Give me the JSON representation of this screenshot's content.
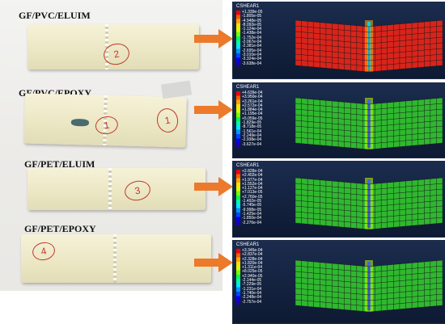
{
  "rows": [
    {
      "label": "GF/PVC/ELUIM",
      "mark": "2",
      "contour": "red",
      "legend_title": "CSHEAR1",
      "legend_values": [
        "+1.339e-05",
        "-1.805e-05",
        "-4.948e-05",
        "-8.092e-05",
        "-1.124e-04",
        "-1.438e-04",
        "-1.752e-04",
        "-2.067e-04",
        "-2.381e-04",
        "-2.695e-04",
        "-3.010e-04",
        "-3.324e-04",
        "-3.638e-04"
      ]
    },
    {
      "label": "GF/PVC/EPOXY",
      "mark": "1",
      "contour": "green",
      "legend_title": "CSHEAR1",
      "legend_values": [
        "+4.639e-04",
        "+3.950e-04",
        "+3.261e-04",
        "+2.572e-04",
        "+1.884e-04",
        "+1.195e-04",
        "+5.059e-05",
        "-1.829e-05",
        "-8.718e-05",
        "-1.561e-04",
        "-2.249e-04",
        "-2.938e-04",
        "-3.627e-04"
      ]
    },
    {
      "label": "GF/PET/ELUIM",
      "mark": "3",
      "contour": "green",
      "legend_title": "CSHEAR1",
      "legend_values": [
        "+2.828e-04",
        "+2.402e-04",
        "+1.977e-04",
        "+1.552e-04",
        "+1.127e-04",
        "+7.013e-05",
        "+2.760e-05",
        "-1.492e-05",
        "-5.745e-05",
        "-9.998e-05",
        "-1.425e-04",
        "-1.850e-04",
        "-2.276e-04"
      ]
    },
    {
      "label": "GF/PET/EPOXY",
      "mark": "4",
      "contour": "green",
      "legend_title": "CSHEAR1",
      "legend_values": [
        "+3.345e-04",
        "+2.837e-04",
        "+2.328e-04",
        "+1.820e-04",
        "+1.311e-04",
        "+8.025e-05",
        "+2.940e-05",
        "-2.144e-05",
        "-7.229e-05",
        "-1.231e-04",
        "-1.740e-04",
        "-2.248e-04",
        "-2.757e-04"
      ]
    }
  ],
  "colors": {
    "arrow": "#ec7a2a",
    "contour_red": "#d9241b",
    "contour_green": "#2fb82f",
    "legend_scale": [
      "#ff0000",
      "#ff5a00",
      "#ffa500",
      "#ffe100",
      "#d2ff00",
      "#78ff00",
      "#00ff50",
      "#00ffaa",
      "#00e6ff",
      "#0096ff",
      "#0046ff",
      "#0000ff",
      "#1a00b4"
    ]
  }
}
